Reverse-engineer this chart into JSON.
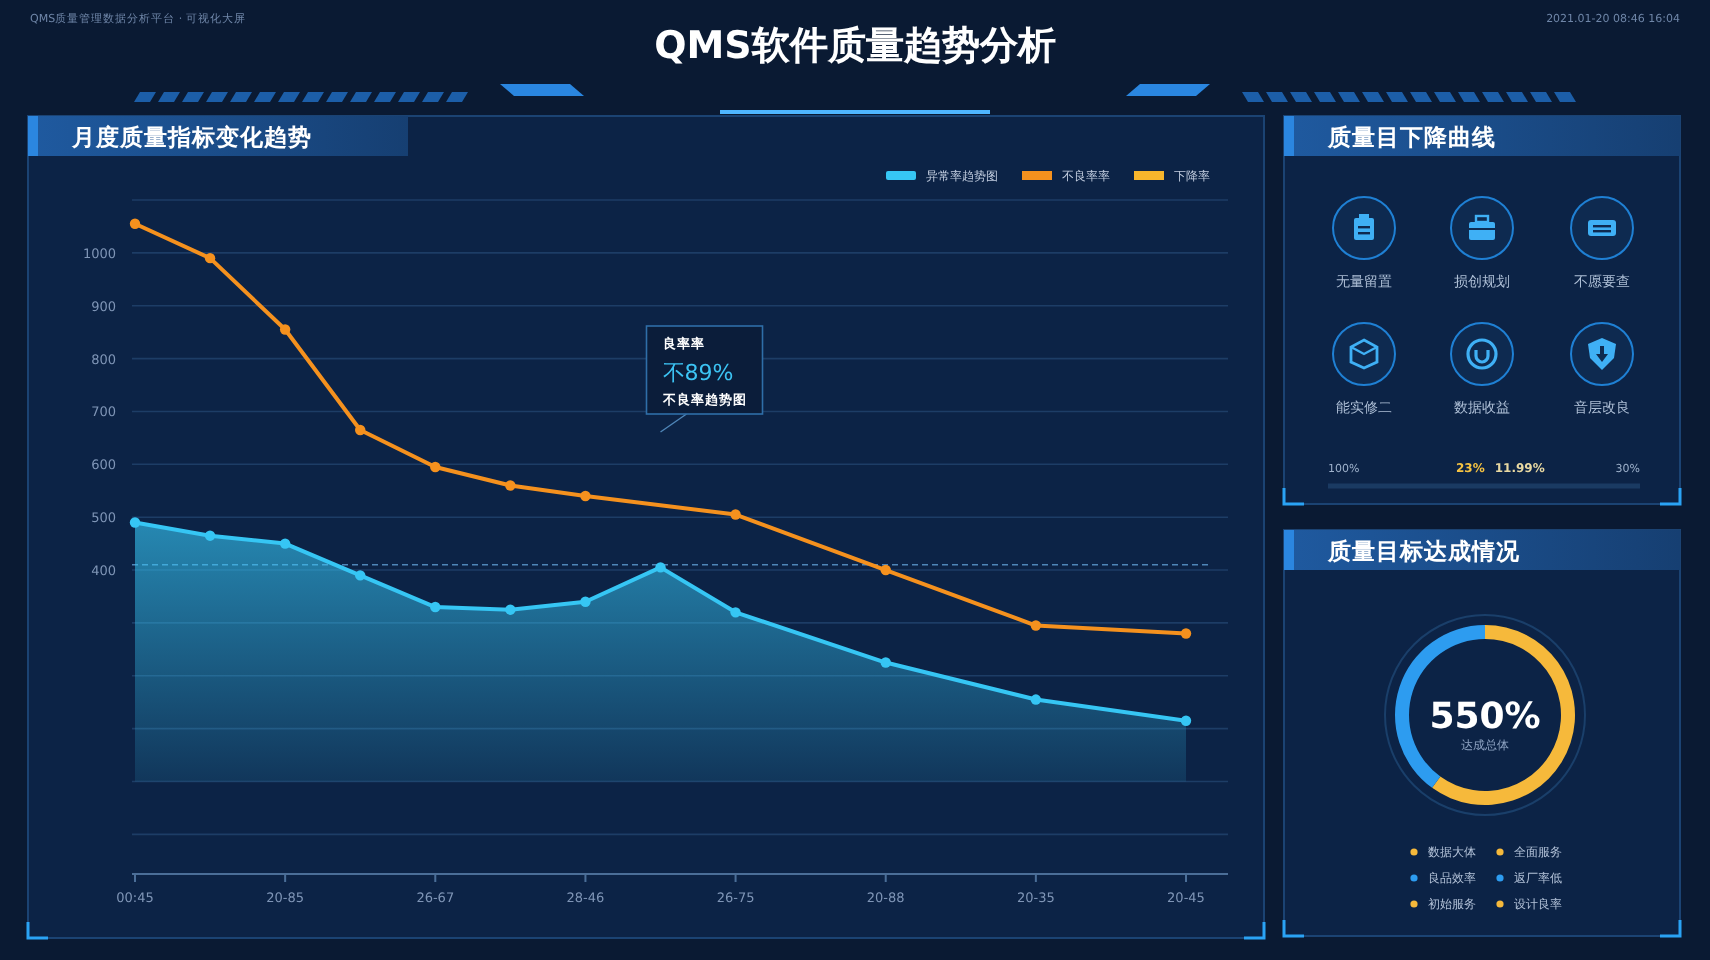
{
  "chart_data": [
    {
      "type": "other",
      "title": "QMS软件质量趋势分析",
      "annotations": [
        "QMS质量管理数据分析平台 · 可视化大屏",
        "2021.01-20 08:46  16:04"
      ]
    },
    {
      "type": "line",
      "title": "月度质量指标变化趋势",
      "categories": [
        "00:45",
        null,
        "20-85",
        null,
        "26-67",
        null,
        "28-46",
        null,
        "26-75",
        null,
        "20-88",
        null,
        "20-35",
        null,
        "20-45"
      ],
      "series": [
        {
          "name": "异常率趋势图",
          "type": "area",
          "color": "#36c6f4",
          "values": [
            490,
            465,
            450,
            390,
            330,
            325,
            340,
            405,
            320,
            null,
            225,
            null,
            155,
            null,
            115
          ]
        },
        {
          "name": "不良率率",
          "color": "#f5911e",
          "values": [
            1055,
            990,
            855,
            665,
            595,
            560,
            540,
            null,
            505,
            null,
            400,
            null,
            295,
            null,
            280
          ]
        },
        {
          "name": "下降率",
          "color": "#f7b52c",
          "values": [
            null,
            null,
            null,
            null,
            null,
            null,
            null,
            null,
            null,
            null,
            null,
            null,
            null,
            null,
            null
          ]
        }
      ],
      "ylim": [
        -175,
        1100
      ],
      "yticks": [
        {
          "value": 1100,
          "label": null
        },
        1000,
        900,
        800,
        700,
        600,
        500,
        400,
        {
          "value": 300,
          "label": null
        },
        {
          "value": 200,
          "label": null
        },
        {
          "value": 100,
          "label": null
        },
        {
          "value": 0,
          "label": null
        },
        {
          "value": -100,
          "label": null
        }
      ],
      "grid": "y",
      "legend": "top right",
      "marker": "circle",
      "ref_lines": [
        {
          "axis": "y",
          "value": 410,
          "color": "#4f86b8",
          "line_style": "dashed"
        }
      ],
      "annotations": [
        "良率率",
        "不89%",
        "不良率趋势图"
      ]
    },
    {
      "type": "other",
      "title": "质量目下降曲线",
      "annotations": [
        "无量留置",
        "损创规划",
        "不愿要查",
        "能实修二",
        "数据收益",
        "音层改良",
        "100%",
        "23%",
        "11.99%",
        "30%"
      ]
    },
    {
      "type": "donut",
      "title": "质量目标达成情况",
      "categories": [
        null,
        null
      ],
      "values": [
        60,
        40
      ],
      "colors": [
        "#f6b93b",
        "#2d9cf0"
      ],
      "annotations": [
        "550%",
        "达成总体",
        "数据大体",
        "全面服务",
        "良品效率",
        "返厂率低",
        "初始服务",
        "设计良率"
      ]
    }
  ]
}
